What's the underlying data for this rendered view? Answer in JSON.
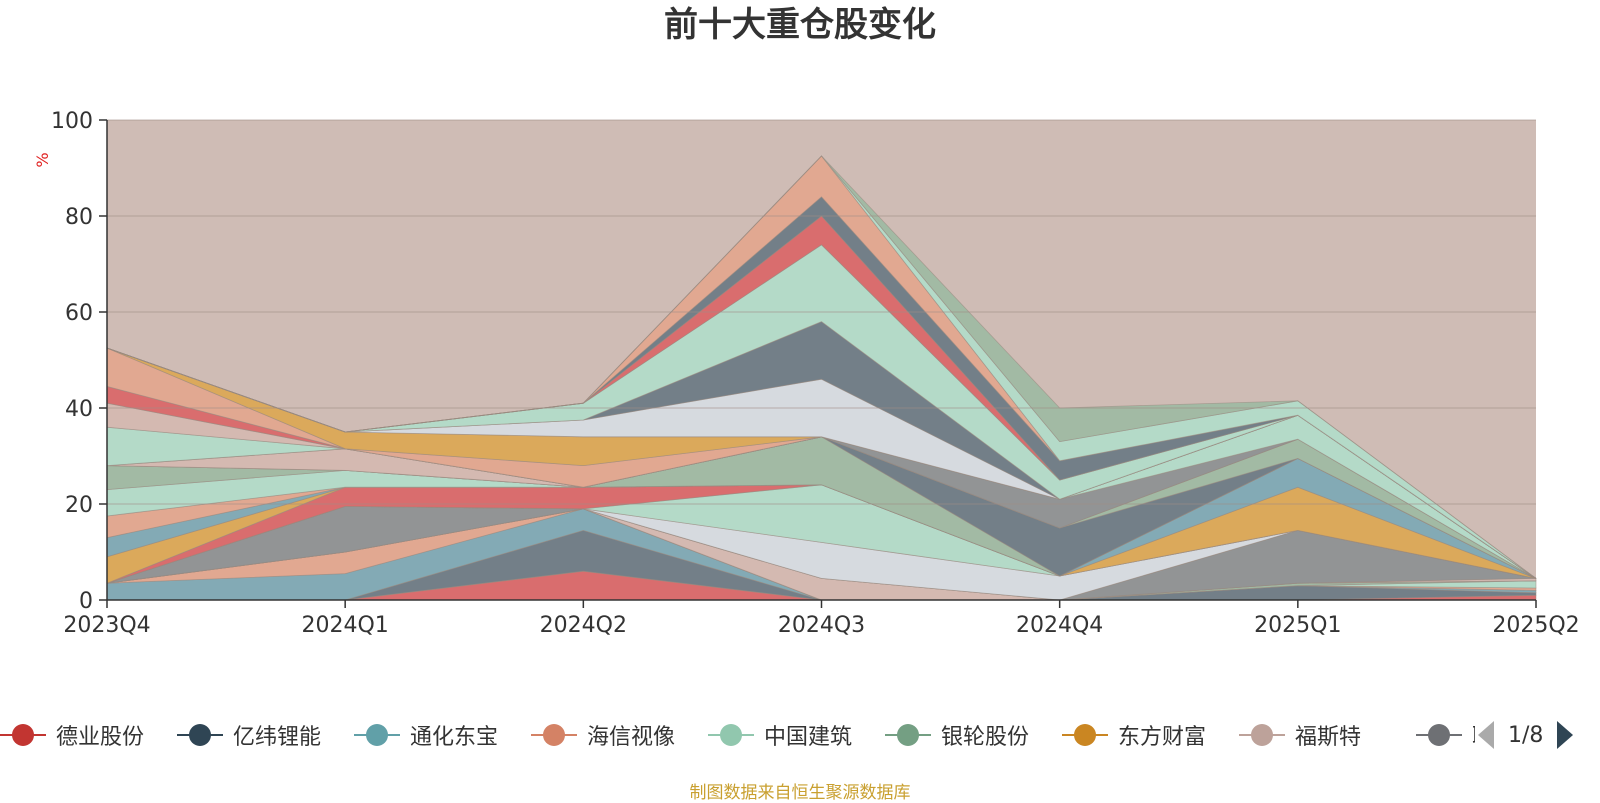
{
  "chart_data": {
    "type": "area",
    "title": "前十大重仓股变化",
    "ylabel": "%",
    "ylim": [
      0,
      100
    ],
    "yticks": [
      0,
      20,
      40,
      60,
      80,
      100
    ],
    "categories": [
      "2023Q4",
      "2024Q1",
      "2024Q2",
      "2024Q3",
      "2024Q4",
      "2025Q1",
      "2025Q2"
    ],
    "grid": true,
    "background_color": "#cfbcb5",
    "series": [
      {
        "name": "德业股份",
        "color": "#d9686a",
        "values": [
          0.0,
          0.0,
          6.0,
          0.0,
          0.0,
          0.0,
          1.0
        ]
      },
      {
        "name": "亿纬锂能",
        "color": "#6e7b86",
        "values": [
          0.0,
          0.0,
          8.5,
          0.0,
          0.0,
          3.0,
          0.5
        ]
      },
      {
        "name": "通化东宝",
        "color": "#7ea9b5",
        "values": [
          3.5,
          5.5,
          4.5,
          0.0,
          0.0,
          0.0,
          0.5
        ]
      },
      {
        "name": "海信视像",
        "color": "#e2a68f",
        "values": [
          0.0,
          4.5,
          0.0,
          0.0,
          0.0,
          0.0,
          0.5
        ]
      },
      {
        "name": "中国建筑",
        "color": "#b2dbc9",
        "values": [
          0.0,
          0.0,
          0.0,
          0.0,
          0.0,
          0.0,
          1.5
        ]
      },
      {
        "name": "银轮股份",
        "color": "#9fb9a3",
        "values": [
          0.0,
          0.0,
          0.0,
          0.0,
          0.0,
          0.5,
          0.0
        ]
      },
      {
        "name": "东方财富",
        "color": "#dba856",
        "values": [
          0.0,
          0.0,
          0.0,
          0.0,
          0.0,
          0.0,
          0.0
        ]
      },
      {
        "name": "福斯特",
        "color": "#d4b8b1",
        "values": [
          0.0,
          0.0,
          0.0,
          4.5,
          0.0,
          0.0,
          0.5
        ]
      },
      {
        "name": "联瑞新材",
        "color": "#8e9194",
        "values": [
          0.0,
          9.5,
          0.0,
          0.0,
          0.0,
          11.0,
          0.0
        ]
      },
      {
        "name": "",
        "color": "#e2a68f",
        "values": [
          0.0,
          0.0,
          0.0,
          0.0,
          0.0,
          0.0,
          0.0
        ]
      },
      {
        "name": "",
        "color": "#d6dbe2",
        "values": [
          0.0,
          0.0,
          0.0,
          7.5,
          5.0,
          0.0,
          0.0
        ]
      },
      {
        "name": "",
        "color": "#b2dbc9",
        "values": [
          0.0,
          0.0,
          0.0,
          12.0,
          0.0,
          0.0,
          0.0
        ]
      },
      {
        "name": "",
        "color": "#d9686a",
        "values": [
          0.0,
          4.0,
          4.5,
          0.0,
          0.0,
          0.0,
          0.0
        ]
      },
      {
        "name": "",
        "color": "#dba856",
        "values": [
          5.5,
          0.0,
          0.0,
          0.0,
          0.0,
          9.0,
          0.0
        ]
      },
      {
        "name": "",
        "color": "#7ea9b5",
        "values": [
          4.0,
          0.0,
          0.0,
          0.0,
          0.0,
          6.0,
          0.0
        ]
      },
      {
        "name": "",
        "color": "#e2a68f",
        "values": [
          4.5,
          0.0,
          0.0,
          0.0,
          0.0,
          0.0,
          0.0
        ]
      },
      {
        "name": "",
        "color": "#b2dbc9",
        "values": [
          5.5,
          3.5,
          0.0,
          0.0,
          0.0,
          0.0,
          0.0
        ]
      },
      {
        "name": "",
        "color": "#9fb9a3",
        "values": [
          5.0,
          0.0,
          0.0,
          10.0,
          0.0,
          0.0,
          0.0
        ]
      },
      {
        "name": "",
        "color": "#6e7b86",
        "values": [
          0.0,
          0.0,
          0.0,
          0.0,
          10.0,
          0.0,
          0.0
        ]
      },
      {
        "name": "",
        "color": "#9fb9a3",
        "values": [
          0.0,
          0.0,
          0.0,
          0.0,
          0.0,
          4.0,
          0.0
        ]
      },
      {
        "name": "",
        "color": "#d4b8b1",
        "values": [
          0.0,
          4.5,
          0.0,
          0.0,
          0.0,
          0.0,
          0.0
        ]
      },
      {
        "name": "",
        "color": "#8e9194",
        "values": [
          0.0,
          0.0,
          0.0,
          0.0,
          6.0,
          0.0,
          0.0
        ]
      },
      {
        "name": "",
        "color": "#b2dbc9",
        "values": [
          8.0,
          0.0,
          0.0,
          0.0,
          0.0,
          5.0,
          0.0
        ]
      },
      {
        "name": "",
        "color": "#d4b8b1",
        "values": [
          5.0,
          0.0,
          0.0,
          0.0,
          0.0,
          0.0,
          0.0
        ]
      },
      {
        "name": "",
        "color": "#d9686a",
        "values": [
          3.5,
          0.0,
          0.0,
          0.0,
          0.0,
          0.0,
          0.0
        ]
      },
      {
        "name": "",
        "color": "#e2a68f",
        "values": [
          8.0,
          0.0,
          4.5,
          0.0,
          0.0,
          0.0,
          0.0
        ]
      },
      {
        "name": "",
        "color": "#dba856",
        "values": [
          0.0,
          3.5,
          6.0,
          0.0,
          0.0,
          0.0,
          0.0
        ]
      },
      {
        "name": "",
        "color": "#d6dbe2",
        "values": [
          0.0,
          0.0,
          3.5,
          12.0,
          0.0,
          0.0,
          0.0
        ]
      },
      {
        "name": "",
        "color": "#6e7b86",
        "values": [
          0.0,
          0.0,
          0.0,
          12.0,
          0.0,
          0.0,
          0.0
        ]
      },
      {
        "name": "",
        "color": "#b2dbc9",
        "values": [
          0.0,
          0.0,
          3.5,
          16.0,
          4.0,
          0.0,
          0.0
        ]
      },
      {
        "name": "",
        "color": "#d9686a",
        "values": [
          0.0,
          0.0,
          0.0,
          6.0,
          0.0,
          0.0,
          0.0
        ]
      },
      {
        "name": "",
        "color": "#6e7b86",
        "values": [
          0.0,
          0.0,
          0.0,
          4.0,
          4.0,
          0.0,
          0.0
        ]
      },
      {
        "name": "",
        "color": "#e2a68f",
        "values": [
          0.0,
          0.0,
          0.0,
          8.5,
          0.0,
          0.0,
          0.0
        ]
      },
      {
        "name": "",
        "color": "#b2dbc9",
        "values": [
          0.0,
          0.0,
          0.0,
          0.0,
          4.0,
          3.0,
          0.0
        ]
      },
      {
        "name": "",
        "color": "#9fb9a3",
        "values": [
          0.0,
          0.0,
          0.0,
          0.0,
          7.0,
          0.0,
          0.0
        ]
      }
    ]
  },
  "legend": {
    "items": [
      {
        "label": "德业股份",
        "color": "#c23531"
      },
      {
        "label": "亿纬锂能",
        "color": "#2f4554"
      },
      {
        "label": "通化东宝",
        "color": "#61a0a8"
      },
      {
        "label": "海信视像",
        "color": "#d48265"
      },
      {
        "label": "中国建筑",
        "color": "#91c7ae"
      },
      {
        "label": "银轮股份",
        "color": "#749f83"
      },
      {
        "label": "东方财富",
        "color": "#ca8622"
      },
      {
        "label": "福斯特",
        "color": "#bda29a"
      },
      {
        "label": "联瑞新材",
        "color": "#6e7074"
      }
    ],
    "page": "1/8"
  },
  "source_note": "制图数据来自恒生聚源数据库"
}
